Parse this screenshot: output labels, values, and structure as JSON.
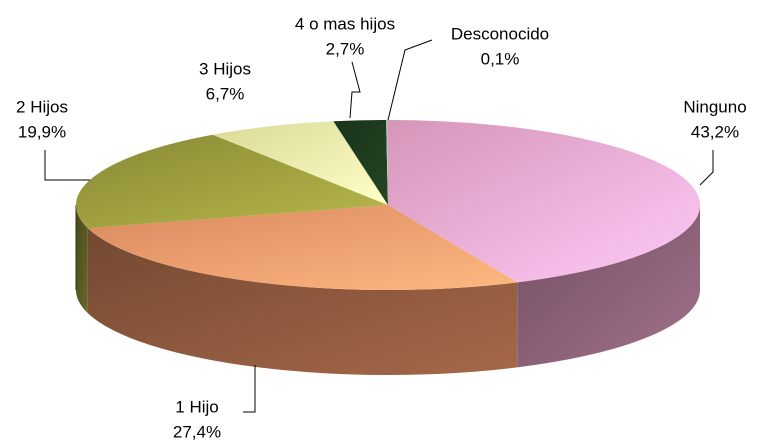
{
  "chart_data": {
    "type": "pie3d",
    "categories": [
      "Ninguno",
      "1 Hijo",
      "2 Hijos",
      "3 Hijos",
      "4 o mas hijos",
      "Desconocido"
    ],
    "values": [
      43.2,
      27.4,
      19.9,
      6.7,
      2.7,
      0.1
    ],
    "value_labels": [
      "43,2%",
      "27,4%",
      "19,9%",
      "6,7%",
      "2,7%",
      "0,1%"
    ],
    "colors": [
      "#fbb0d8",
      "#ffa070",
      "#a0a040",
      "#ffffb0",
      "#1e3c1e",
      "#c0c0c0"
    ]
  }
}
